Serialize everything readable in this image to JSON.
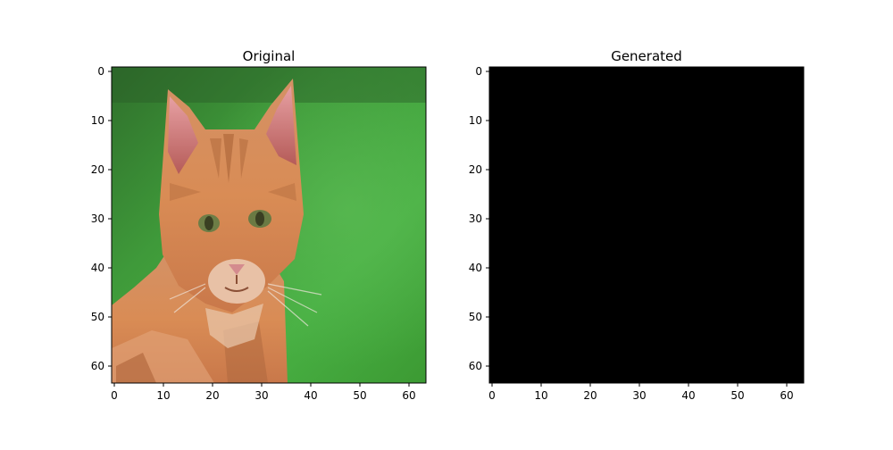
{
  "figure": {
    "panels": [
      {
        "title": "Original",
        "content": "orange tabby cat on green background",
        "xticks": [
          "0",
          "10",
          "20",
          "30",
          "40",
          "50",
          "60"
        ],
        "yticks": [
          "0",
          "10",
          "20",
          "30",
          "40",
          "50",
          "60"
        ]
      },
      {
        "title": "Generated",
        "content": "solid black image",
        "xticks": [
          "0",
          "10",
          "20",
          "30",
          "40",
          "50",
          "60"
        ],
        "yticks": [
          "0",
          "10",
          "20",
          "30",
          "40",
          "50",
          "60"
        ]
      }
    ],
    "image_grid": [
      64,
      64
    ],
    "colors": {
      "background_green": "#3f9a3a",
      "cat_orange": "#d98c55",
      "generated_fill": "#000000"
    }
  }
}
